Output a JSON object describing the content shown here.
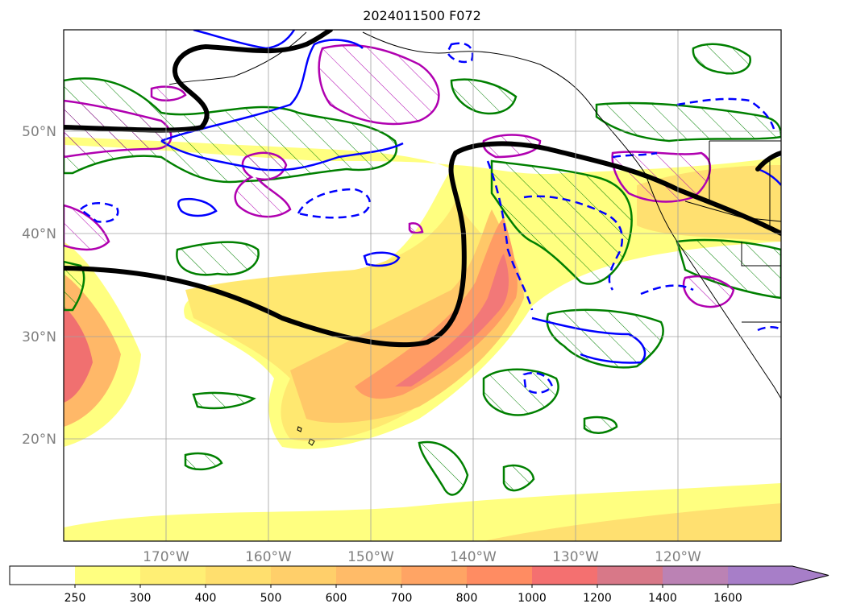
{
  "title": "2024011500 F072",
  "map": {
    "lat_labels": [
      "50°N",
      "40°N",
      "30°N",
      "20°N"
    ],
    "lon_labels": [
      "170°W",
      "160°W",
      "150°W",
      "140°W",
      "130°W",
      "120°W"
    ],
    "layers": {
      "shading": "fill-levels",
      "jet_line": "black-thick",
      "hatched": "green-hatched",
      "solid_blue": "blue-solid",
      "dashed_blue": "blue-dashed",
      "magenta": "magenta-hatched"
    }
  },
  "colorbar": {
    "labels": [
      "250",
      "300",
      "400",
      "500",
      "600",
      "700",
      "800",
      "1000",
      "1200",
      "1400",
      "1600"
    ],
    "colors": [
      "#ffff80",
      "#ffef74",
      "#ffdf6e",
      "#ffcf6a",
      "#ffbb68",
      "#ffa464",
      "#ff8c62",
      "#f47070",
      "#d87888",
      "#bb82b4",
      "#a77ec8"
    ],
    "extend": "max"
  }
}
